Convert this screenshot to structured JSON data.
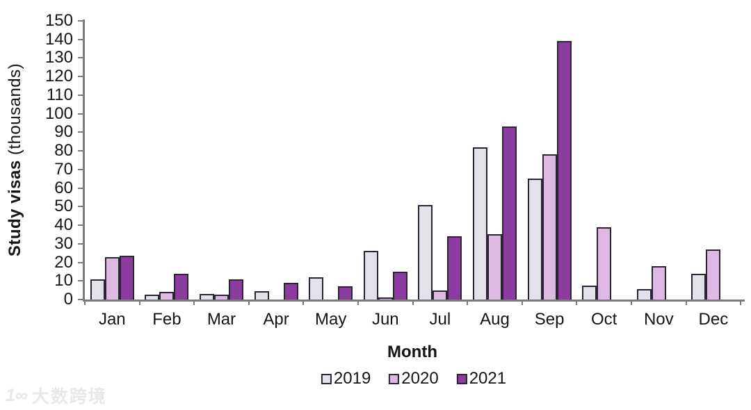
{
  "watermark": {
    "logo": "1∞",
    "text": "大数跨境"
  },
  "chart_data": {
    "type": "bar",
    "title": "",
    "xlabel": "Month",
    "ylabel": "Study visas (thousands)",
    "ylabel_main": "Study visas",
    "ylabel_sub": "(thousands)",
    "categories": [
      "Jan",
      "Feb",
      "Mar",
      "Apr",
      "May",
      "Jun",
      "Jul",
      "Aug",
      "Sep",
      "Oct",
      "Nov",
      "Dec"
    ],
    "series": [
      {
        "name": "2019",
        "color": "#e3e1e9",
        "values": [
          11,
          2.5,
          3,
          4.5,
          12,
          26,
          51,
          82,
          65,
          7.5,
          5.5,
          14
        ]
      },
      {
        "name": "2020",
        "color": "#ddb9e4",
        "values": [
          23,
          4,
          2.5,
          0,
          0,
          1,
          5,
          35,
          78,
          39,
          18,
          27
        ]
      },
      {
        "name": "2021",
        "color": "#8c3c9e",
        "values": [
          23.5,
          14,
          11,
          9,
          7,
          15,
          34,
          93,
          139,
          0,
          0,
          0
        ]
      }
    ],
    "ylim": [
      0,
      150
    ],
    "ytick_step": 10,
    "yticks": [
      0,
      10,
      20,
      30,
      40,
      50,
      60,
      70,
      80,
      90,
      100,
      110,
      120,
      130,
      140,
      150
    ],
    "grid": false,
    "legend_position": "bottom",
    "axis_color": "#7a7a7a",
    "bar_border_color": "#2a2532"
  }
}
